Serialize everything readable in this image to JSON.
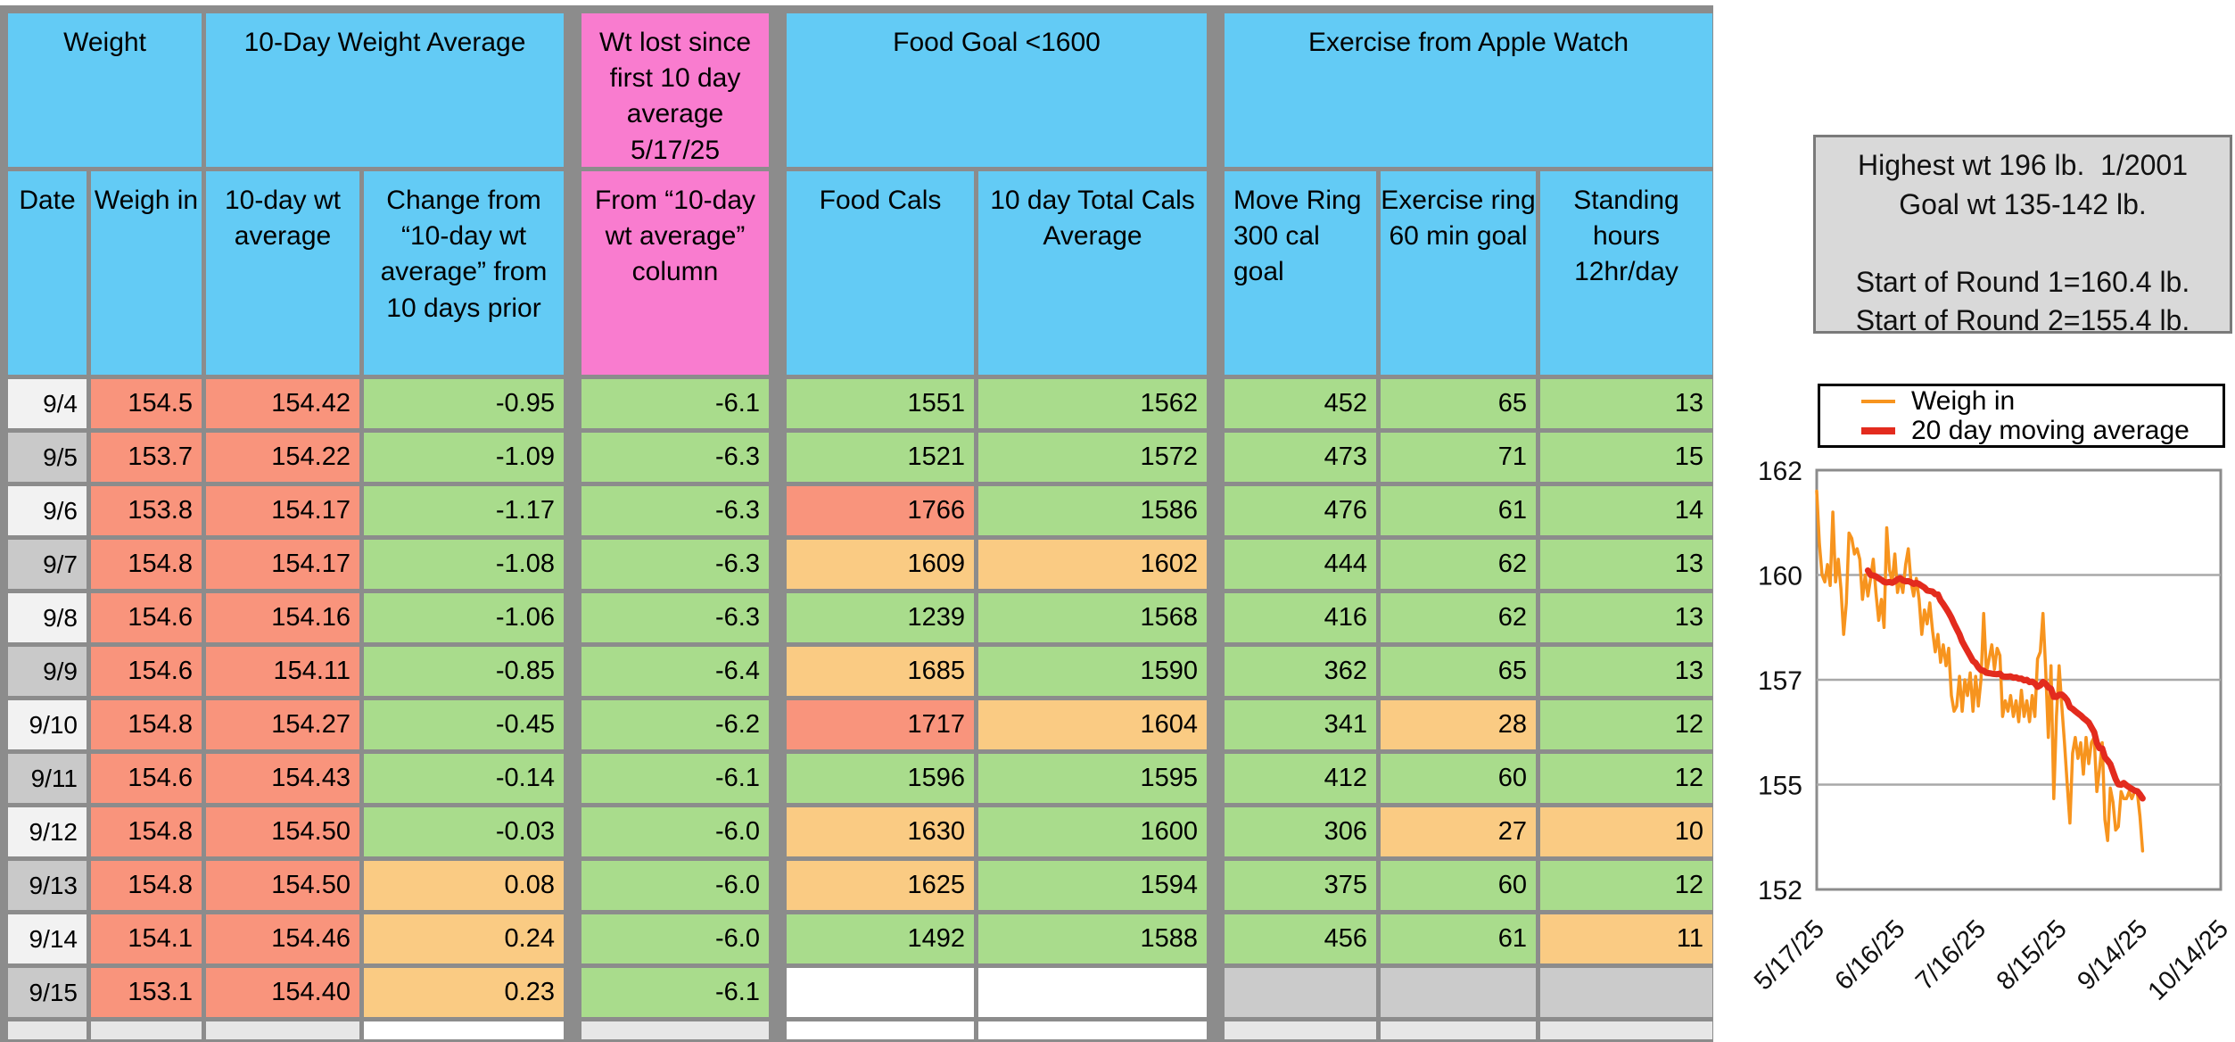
{
  "colors": {
    "blue": "#63CBF5",
    "pink": "#F97CCF",
    "salmon": "#F9947C",
    "green": "#A9DC8C",
    "orange": "#FACB83",
    "gray": "#CBCBCB",
    "white": "#FFFFFF",
    "date_light": "#F2F2F2",
    "date_dark": "#C9C9C9",
    "partial_light": "#E7E7E7",
    "table_border": "#8C8C8C"
  },
  "table": {
    "group_headers": [
      {
        "label": "Weight",
        "color": "blue",
        "cols": [
          0,
          1
        ]
      },
      {
        "label": "10-Day Weight Average",
        "color": "blue",
        "cols": [
          2,
          3
        ]
      },
      {
        "label": "Wt lost since first 10 day average 5/17/25",
        "color": "pink",
        "cols": [
          4
        ]
      },
      {
        "label": "Food Goal <1600",
        "color": "blue",
        "cols": [
          5,
          6
        ]
      },
      {
        "label": "Exercise from Apple Watch",
        "color": "blue",
        "cols": [
          7,
          8,
          9
        ]
      }
    ],
    "sub_headers": [
      "Date",
      "Weigh in",
      "10-day wt average",
      "Change from “10-day wt average” from 10 days prior",
      "From “10-day wt average” column",
      "Food Cals",
      "10 day Total Cals Average",
      "Move Ring 300 cal goal",
      "Exercise ring 60 min goal",
      "Standing hours 12hr/day"
    ],
    "rows": [
      {
        "date": "9/4",
        "shade": "light",
        "values": [
          "154.5",
          "154.42",
          "-0.95",
          "-6.1",
          "1551",
          "1562",
          "452",
          "65",
          "13"
        ],
        "cell_colors": [
          "salmon",
          "salmon",
          "green",
          "green",
          "green",
          "green",
          "green",
          "green",
          "green"
        ]
      },
      {
        "date": "9/5",
        "shade": "dark",
        "values": [
          "153.7",
          "154.22",
          "-1.09",
          "-6.3",
          "1521",
          "1572",
          "473",
          "71",
          "15"
        ],
        "cell_colors": [
          "salmon",
          "salmon",
          "green",
          "green",
          "green",
          "green",
          "green",
          "green",
          "green"
        ]
      },
      {
        "date": "9/6",
        "shade": "light",
        "values": [
          "153.8",
          "154.17",
          "-1.17",
          "-6.3",
          "1766",
          "1586",
          "476",
          "61",
          "14"
        ],
        "cell_colors": [
          "salmon",
          "salmon",
          "green",
          "green",
          "salmon",
          "green",
          "green",
          "green",
          "green"
        ]
      },
      {
        "date": "9/7",
        "shade": "dark",
        "values": [
          "154.8",
          "154.17",
          "-1.08",
          "-6.3",
          "1609",
          "1602",
          "444",
          "62",
          "13"
        ],
        "cell_colors": [
          "salmon",
          "salmon",
          "green",
          "green",
          "orange",
          "orange",
          "green",
          "green",
          "green"
        ]
      },
      {
        "date": "9/8",
        "shade": "light",
        "values": [
          "154.6",
          "154.16",
          "-1.06",
          "-6.3",
          "1239",
          "1568",
          "416",
          "62",
          "13"
        ],
        "cell_colors": [
          "salmon",
          "salmon",
          "green",
          "green",
          "green",
          "green",
          "green",
          "green",
          "green"
        ]
      },
      {
        "date": "9/9",
        "shade": "dark",
        "values": [
          "154.6",
          "154.11",
          "-0.85",
          "-6.4",
          "1685",
          "1590",
          "362",
          "65",
          "13"
        ],
        "cell_colors": [
          "salmon",
          "salmon",
          "green",
          "green",
          "orange",
          "green",
          "green",
          "green",
          "green"
        ]
      },
      {
        "date": "9/10",
        "shade": "light",
        "values": [
          "154.8",
          "154.27",
          "-0.45",
          "-6.2",
          "1717",
          "1604",
          "341",
          "28",
          "12"
        ],
        "cell_colors": [
          "salmon",
          "salmon",
          "green",
          "green",
          "salmon",
          "orange",
          "green",
          "orange",
          "green"
        ]
      },
      {
        "date": "9/11",
        "shade": "dark",
        "values": [
          "154.6",
          "154.43",
          "-0.14",
          "-6.1",
          "1596",
          "1595",
          "412",
          "60",
          "12"
        ],
        "cell_colors": [
          "salmon",
          "salmon",
          "green",
          "green",
          "green",
          "green",
          "green",
          "green",
          "green"
        ]
      },
      {
        "date": "9/12",
        "shade": "light",
        "values": [
          "154.8",
          "154.50",
          "-0.03",
          "-6.0",
          "1630",
          "1600",
          "306",
          "27",
          "10"
        ],
        "cell_colors": [
          "salmon",
          "salmon",
          "green",
          "green",
          "orange",
          "green",
          "green",
          "orange",
          "orange"
        ]
      },
      {
        "date": "9/13",
        "shade": "dark",
        "values": [
          "154.8",
          "154.50",
          "0.08",
          "-6.0",
          "1625",
          "1594",
          "375",
          "60",
          "12"
        ],
        "cell_colors": [
          "salmon",
          "salmon",
          "orange",
          "green",
          "orange",
          "green",
          "green",
          "green",
          "green"
        ]
      },
      {
        "date": "9/14",
        "shade": "light",
        "values": [
          "154.1",
          "154.46",
          "0.24",
          "-6.0",
          "1492",
          "1588",
          "456",
          "61",
          "11"
        ],
        "cell_colors": [
          "salmon",
          "salmon",
          "orange",
          "green",
          "green",
          "green",
          "green",
          "green",
          "orange"
        ]
      },
      {
        "date": "9/15",
        "shade": "dark",
        "values": [
          "153.1",
          "154.40",
          "0.23",
          "-6.1",
          "",
          "",
          "",
          "",
          ""
        ],
        "cell_colors": [
          "salmon",
          "salmon",
          "orange",
          "green",
          "white",
          "white",
          "gray",
          "gray",
          "gray"
        ]
      }
    ],
    "partial_row_colors": [
      "partial_light",
      "partial_light",
      "partial_light",
      "white",
      "partial_light",
      "white",
      "white",
      "partial_light",
      "partial_light",
      "partial_light"
    ]
  },
  "info_box": {
    "lines": [
      "Highest wt 196 lb.  1/2001",
      "Goal wt 135-142 lb.",
      "",
      "Start of Round 1=160.4 lb.",
      "Start of Round 2=155.4 lb."
    ]
  },
  "chart_data": {
    "type": "line",
    "title": "",
    "xlabel": "",
    "ylabel": "",
    "grid": true,
    "legend_position": "top-right",
    "x_axis": {
      "start_label": "5/17/25",
      "tick_labels": [
        "5/17/25",
        "6/16/25",
        "7/16/25",
        "8/15/25",
        "9/14/25",
        "10/14/25"
      ],
      "tick_interval_days": 30,
      "total_days": 150,
      "interval": "daily"
    },
    "y_axis": {
      "tick_labels": [
        162,
        160,
        157,
        155,
        152
      ],
      "evenly_spaced_ticks": true,
      "unit": "lb"
    },
    "series": [
      {
        "name": "Weigh in",
        "color": "#F7941E",
        "start_date": "5/17/25",
        "values": [
          161.6,
          160.6,
          160.0,
          159.8,
          160.2,
          159.7,
          161.2,
          159.8,
          160.3,
          159.6,
          158.3,
          159.2,
          160.8,
          160.7,
          160.4,
          160.5,
          160.3,
          159.3,
          160.0,
          159.4,
          159.9,
          160.3,
          159.5,
          158.7,
          159.3,
          158.5,
          160.9,
          160.1,
          159.8,
          160.4,
          159.5,
          159.9,
          159.5,
          160.2,
          160.5,
          159.8,
          159.4,
          159.9,
          159.3,
          158.3,
          159.0,
          158.6,
          159.2,
          158.4,
          157.8,
          158.3,
          157.5,
          158.0,
          157.4,
          157.9,
          156.7,
          156.4,
          156.5,
          157.1,
          156.4,
          157.0,
          156.7,
          157.2,
          156.4,
          157.1,
          156.5,
          157.0,
          158.9,
          157.2,
          157.6,
          158.0,
          157.3,
          157.9,
          157.7,
          156.3,
          156.6,
          156.4,
          156.7,
          156.3,
          156.6,
          156.2,
          156.8,
          156.3,
          156.6,
          156.2,
          156.7,
          156.3,
          157.6,
          157.8,
          158.9,
          157.3,
          155.9,
          157.4,
          154.6,
          156.3,
          157.4,
          156.5,
          155.8,
          155.0,
          153.9,
          155.6,
          155.9,
          155.5,
          155.8,
          155.2,
          155.9,
          155.4,
          155.8,
          155.9,
          154.8,
          155.3,
          155.8,
          154.0,
          153.4,
          154.9,
          154.5,
          153.7,
          153.8,
          154.8,
          154.6,
          154.6,
          154.8,
          154.6,
          154.8,
          154.8,
          154.1,
          153.1
        ]
      },
      {
        "name": "20 day moving average",
        "color": "#E32B1E",
        "derived": "moving_average_of_series_0",
        "window": 20
      }
    ]
  }
}
